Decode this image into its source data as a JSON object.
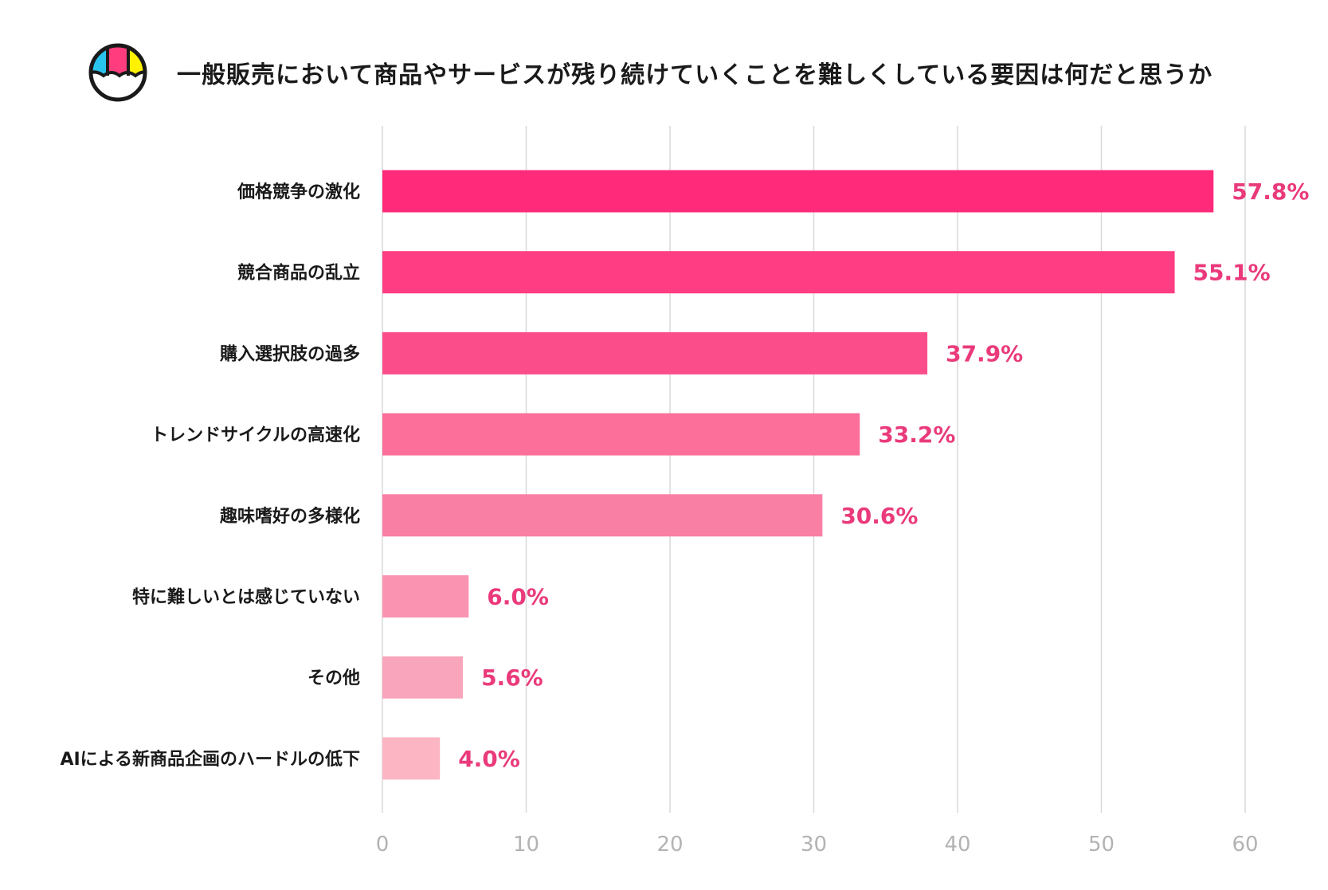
{
  "header": {
    "title": "一般販売において商品やサービスが残り続けていくことを難しくしている要因は何だと思うか",
    "logo_icon": "shopping-bag-brand-logo-icon"
  },
  "colors": {
    "value_label": "#ea3a7b",
    "grid": "#d9d9d9",
    "tick": "#b3b3b3",
    "bars": [
      "#ff2a79",
      "#fe3d83",
      "#fc4d8b",
      "#fc6f9a",
      "#f97fa5",
      "#fa93b2",
      "#f9a5bb",
      "#fbb5c3"
    ],
    "logo": {
      "cyan": "#29c4ee",
      "pink": "#ff3c7d",
      "yellow": "#fff200",
      "outline": "#1a1a1a"
    }
  },
  "chart_data": {
    "type": "bar",
    "orientation": "horizontal",
    "title": "一般販売において商品やサービスが残り続けていくことを難しくしている要因は何だと思うか",
    "categories": [
      "価格競争の激化",
      "競合商品の乱立",
      "購入選択肢の過多",
      "トレンドサイクルの高速化",
      "趣味嗜好の多様化",
      "特に難しいとは感じていない",
      "その他",
      "AIによる新商品企画のハードルの低下"
    ],
    "values": [
      57.8,
      55.1,
      37.9,
      33.2,
      30.6,
      6.0,
      5.6,
      4.0
    ],
    "value_labels": [
      "57.8%",
      "55.1%",
      "37.9%",
      "33.2%",
      "30.6%",
      "6.0%",
      "5.6%",
      "4.0%"
    ],
    "xlim": [
      0,
      60
    ],
    "xticks": [
      0,
      10,
      20,
      30,
      40,
      50,
      60
    ],
    "xlabel": "",
    "ylabel": "",
    "grid": "vertical"
  }
}
